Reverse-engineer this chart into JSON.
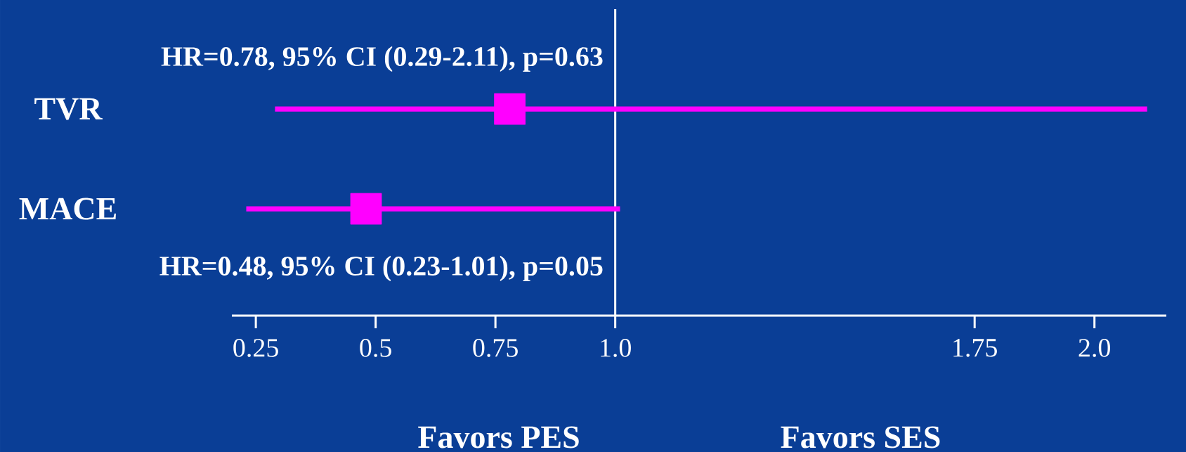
{
  "chart_data": {
    "type": "scatter",
    "orientation": "horizontal",
    "categories": [
      "TVR",
      "MACE"
    ],
    "series": [
      {
        "color": "#ff00ff",
        "values": [
          0.78,
          0.48
        ],
        "errors": [
          [
            0.29,
            2.11
          ],
          [
            0.23,
            1.01
          ]
        ]
      }
    ],
    "marker": "square",
    "xlim": [
      0.2,
      2.15
    ],
    "xticks": [
      {
        "value": 0.25,
        "label": "0.25"
      },
      0.5,
      0.75,
      {
        "value": 1.0,
        "label": "1.0"
      },
      1.75,
      {
        "value": 2.0,
        "label": "2.0"
      }
    ],
    "ref_lines": [
      {
        "axis": "x",
        "value": 1.0,
        "color": "#ffffff"
      }
    ],
    "annotations": [
      "HR=0.78, 95% CI (0.29-2.11), p=0.63",
      "HR=0.48, 95% CI (0.23-1.01), p=0.05",
      "Favors PES",
      "Favors SES"
    ]
  }
}
